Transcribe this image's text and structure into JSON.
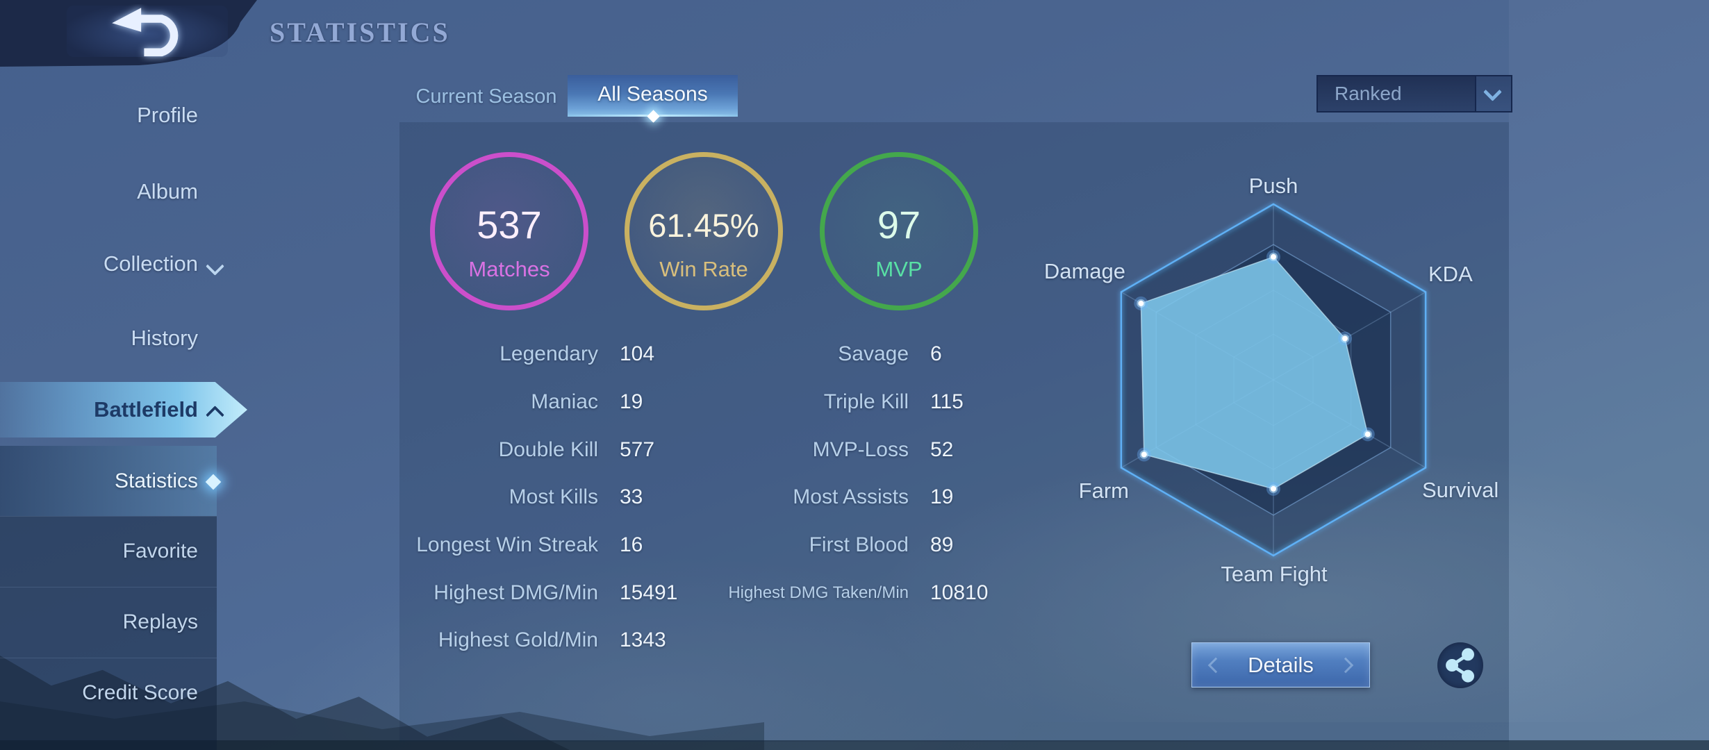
{
  "header": {
    "title": "STATISTICS",
    "back_icon": "back-arrow"
  },
  "sidebar": {
    "items": [
      {
        "label": "Profile"
      },
      {
        "label": "Album"
      },
      {
        "label": "Collection",
        "chevron": "down"
      },
      {
        "label": "History"
      },
      {
        "label": "Battlefield",
        "chevron": "up",
        "active": true
      }
    ],
    "submenu": [
      {
        "label": "Statistics",
        "active": true
      },
      {
        "label": "Favorite"
      },
      {
        "label": "Replays"
      },
      {
        "label": "Credit Score"
      }
    ]
  },
  "tabs": [
    {
      "label": "Current Season",
      "active": false
    },
    {
      "label": "All Seasons",
      "active": true
    }
  ],
  "filter": {
    "value": "Ranked",
    "chevron_icon": "chevron-down"
  },
  "summary": [
    {
      "value": "537",
      "label": "Matches",
      "ring_color": "#cb4fcb"
    },
    {
      "value": "61.45%",
      "label": "Win Rate",
      "ring_color": "#c9b161"
    },
    {
      "value": "97",
      "label": "MVP",
      "ring_color": "#44a84c"
    }
  ],
  "stats": {
    "left": [
      {
        "label": "Legendary",
        "value": "104"
      },
      {
        "label": "Maniac",
        "value": "19"
      },
      {
        "label": "Double Kill",
        "value": "577"
      },
      {
        "label": "Most Kills",
        "value": "33"
      },
      {
        "label": "Longest Win Streak",
        "value": "16"
      },
      {
        "label": "Highest DMG/Min",
        "value": "15491"
      },
      {
        "label": "Highest Gold/Min",
        "value": "1343"
      }
    ],
    "right": [
      {
        "label": "Savage",
        "value": "6"
      },
      {
        "label": "Triple Kill",
        "value": "115"
      },
      {
        "label": "MVP-Loss",
        "value": "52"
      },
      {
        "label": "Most Assists",
        "value": "19"
      },
      {
        "label": "First Blood",
        "value": "89"
      },
      {
        "label": "Highest DMG Taken/Min",
        "value": "10810"
      }
    ]
  },
  "chart_data": {
    "type": "radar",
    "categories": [
      "Push",
      "KDA",
      "Survival",
      "Team Fight",
      "Farm",
      "Damage"
    ],
    "values": [
      0.7,
      0.47,
      0.62,
      0.62,
      0.85,
      0.87
    ],
    "max": 1,
    "grid_levels": [
      0.26,
      0.51,
      0.77,
      1.0
    ],
    "legend": "none",
    "fill_color": "#7dc5e9",
    "outline_color": "#5fb0f5"
  },
  "actions": {
    "details_label": "Details",
    "share_icon": "share-nodes"
  }
}
